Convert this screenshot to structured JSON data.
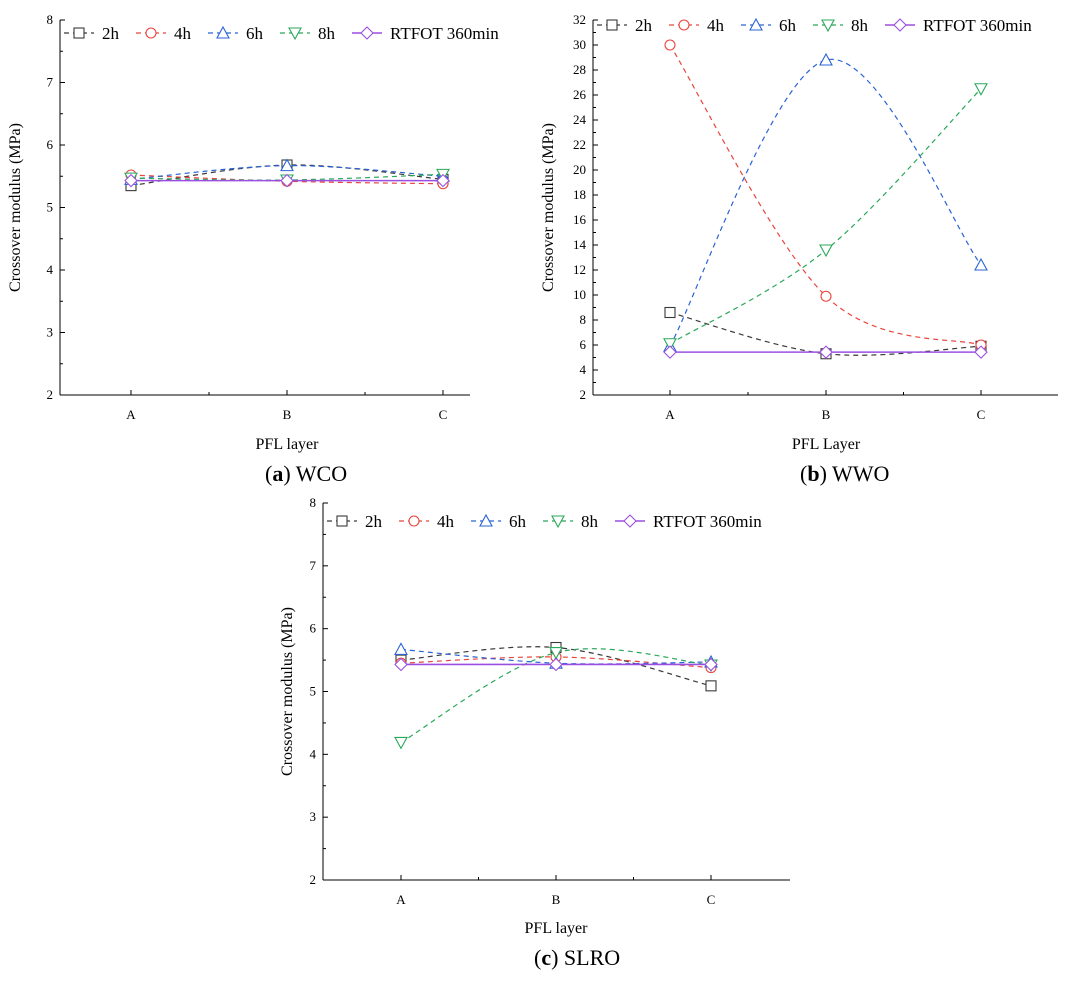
{
  "chart_data": [
    {
      "id": "a",
      "type": "line",
      "title": "WCO",
      "caption_letter": "a",
      "caption_name": "WCO",
      "xlabel": "PFL layer",
      "ylabel": "Crossover modulus (MPa)",
      "categories": [
        "A",
        "B",
        "C"
      ],
      "ylim": [
        2,
        8
      ],
      "yticks": [
        2,
        3,
        4,
        5,
        6,
        7,
        8
      ],
      "legend_position": "top",
      "series": [
        {
          "name": "2h",
          "values": [
            5.35,
            5.68,
            5.45
          ]
        },
        {
          "name": "4h",
          "values": [
            5.52,
            5.42,
            5.38
          ]
        },
        {
          "name": "6h",
          "values": [
            5.45,
            5.67,
            5.5
          ]
        },
        {
          "name": "8h",
          "values": [
            5.47,
            5.44,
            5.53
          ]
        },
        {
          "name": "RTFOT 360min",
          "values": [
            5.43,
            5.43,
            5.43
          ]
        }
      ]
    },
    {
      "id": "b",
      "type": "line",
      "title": "WWO",
      "caption_letter": "b",
      "caption_name": "WWO",
      "xlabel": "PFL Layer",
      "ylabel": "Crossover modulus (MPa)",
      "categories": [
        "A",
        "B",
        "C"
      ],
      "ylim": [
        2,
        32
      ],
      "yticks": [
        2,
        4,
        6,
        8,
        10,
        12,
        14,
        16,
        18,
        20,
        22,
        24,
        26,
        28,
        30,
        32
      ],
      "legend_position": "top",
      "series": [
        {
          "name": "2h",
          "values": [
            8.6,
            5.3,
            5.9
          ]
        },
        {
          "name": "4h",
          "values": [
            30.0,
            9.9,
            6.0
          ]
        },
        {
          "name": "6h",
          "values": [
            5.9,
            28.8,
            12.4
          ]
        },
        {
          "name": "8h",
          "values": [
            6.1,
            13.6,
            26.5
          ]
        },
        {
          "name": "RTFOT 360min",
          "values": [
            5.43,
            5.43,
            5.43
          ]
        }
      ]
    },
    {
      "id": "c",
      "type": "line",
      "title": "SLRO",
      "caption_letter": "c",
      "caption_name": "SLRO",
      "xlabel": "PFL layer",
      "ylabel": "Crossover modulus (MPa)",
      "categories": [
        "A",
        "B",
        "C"
      ],
      "ylim": [
        2,
        8
      ],
      "yticks": [
        2,
        3,
        4,
        5,
        6,
        7,
        8
      ],
      "legend_position": "top",
      "series": [
        {
          "name": "2h",
          "values": [
            5.5,
            5.7,
            5.09
          ]
        },
        {
          "name": "4h",
          "values": [
            5.45,
            5.55,
            5.38
          ]
        },
        {
          "name": "6h",
          "values": [
            5.67,
            5.45,
            5.47
          ]
        },
        {
          "name": "8h",
          "values": [
            4.19,
            5.62,
            5.42
          ]
        },
        {
          "name": "RTFOT 360min",
          "values": [
            5.43,
            5.43,
            5.43
          ]
        }
      ]
    }
  ],
  "series_style": [
    {
      "name": "2h",
      "color": "#3a3a3a",
      "marker": "square-marker",
      "dashed": true
    },
    {
      "name": "4h",
      "color": "#e8453c",
      "marker": "circle-marker",
      "dashed": true
    },
    {
      "name": "6h",
      "color": "#2a63d6",
      "marker": "triangle-up-marker",
      "dashed": true
    },
    {
      "name": "8h",
      "color": "#2aa85a",
      "marker": "triangle-down-marker",
      "dashed": true
    },
    {
      "name": "RTFOT 360min",
      "color": "#9b4fe0",
      "marker": "diamond-marker",
      "dashed": false
    }
  ]
}
